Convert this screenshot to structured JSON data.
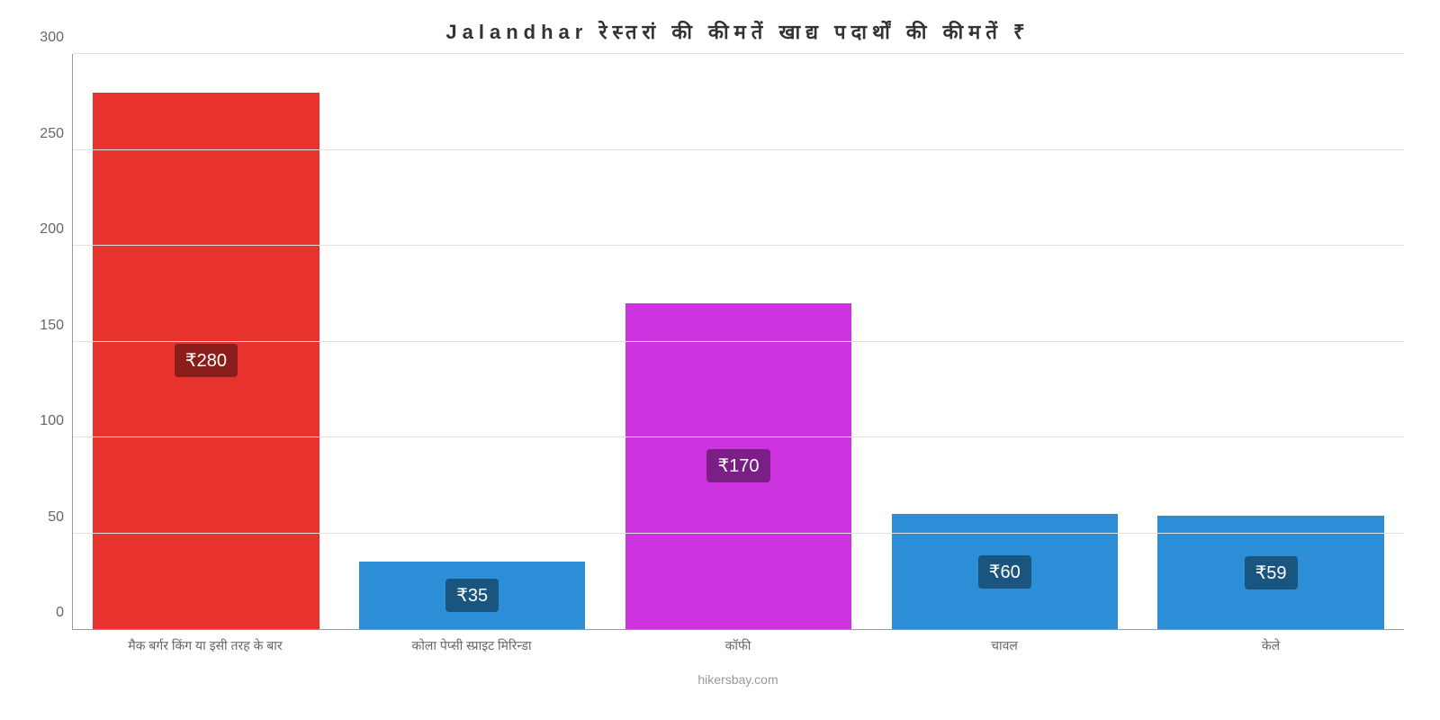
{
  "chart": {
    "type": "bar",
    "title": "Jalandhar रेस्तरां की कीमतें खाद्य पदार्थों की कीमतें ₹",
    "title_fontsize": 22,
    "title_color": "#333333",
    "background_color": "#ffffff",
    "grid_color": "#e0e0e0",
    "axis_color": "#999999",
    "ylim": [
      0,
      300
    ],
    "ytick_step": 50,
    "yticks": [
      0,
      50,
      100,
      150,
      200,
      250,
      300
    ],
    "categories": [
      "मैक बर्गर किंग या इसी तरह के बार",
      "कोला पेप्सी स्प्राइट मिरिन्डा",
      "कॉफी",
      "चावल",
      "केले"
    ],
    "values": [
      280,
      35,
      170,
      60,
      59
    ],
    "value_labels": [
      "₹280",
      "₹35",
      "₹170",
      "₹60",
      "₹59"
    ],
    "bar_colors": [
      "#e8322d",
      "#2c8ed6",
      "#cd34e0",
      "#2c8ed6",
      "#2c8ed6"
    ],
    "label_bg_colors": [
      "#8b1e1a",
      "#1a5580",
      "#7a1f86",
      "#1a5580",
      "#1a5580"
    ],
    "bar_width_ratio": 0.85,
    "label_fontsize": 20,
    "label_color": "#ffffff",
    "xlabel_fontsize": 14,
    "xlabel_color": "#666666",
    "ylabel_fontsize": 16,
    "ylabel_color": "#666666",
    "attribution": "hikersbay.com",
    "attribution_color": "#999999",
    "attribution_fontsize": 14
  }
}
